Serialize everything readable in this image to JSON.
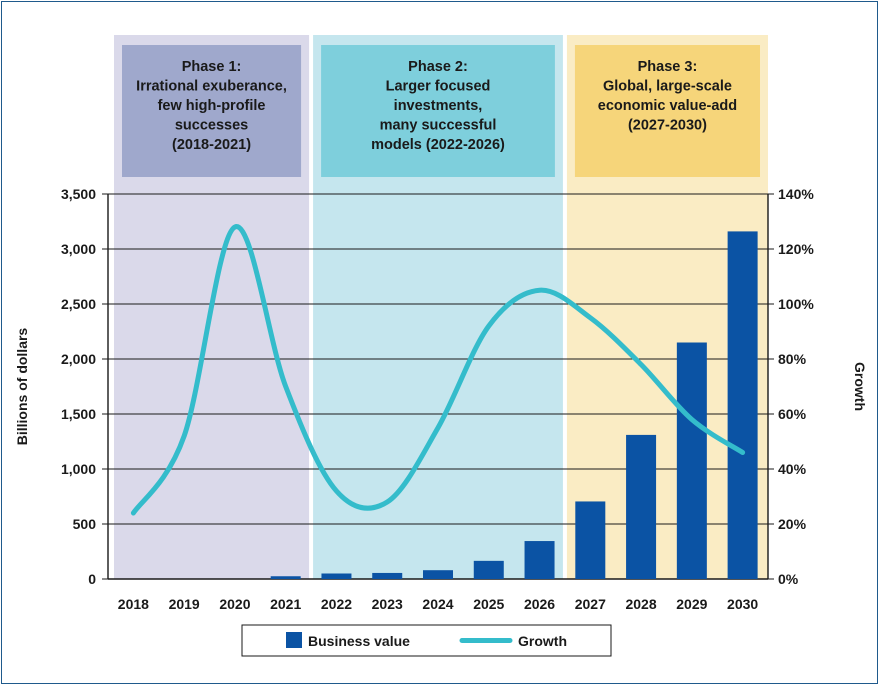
{
  "chart_data": {
    "type": "bar",
    "categories": [
      "2018",
      "2019",
      "2020",
      "2021",
      "2022",
      "2023",
      "2024",
      "2025",
      "2026",
      "2027",
      "2028",
      "2029",
      "2030"
    ],
    "series": [
      {
        "name": "Business value",
        "axis": "left",
        "kind": "bar",
        "values": [
          0,
          0,
          0,
          25,
          50,
          55,
          80,
          165,
          345,
          705,
          1310,
          2150,
          3160
        ]
      },
      {
        "name": "Growth",
        "axis": "right",
        "kind": "line",
        "smooth": true,
        "values": [
          24,
          52,
          128,
          70,
          32,
          28,
          55,
          92,
          105,
          95,
          78,
          58,
          46
        ]
      }
    ],
    "y_left": {
      "label": "Billions of dollars",
      "ylim": [
        0,
        3500
      ],
      "ticks": [
        "0",
        "500",
        "1,000",
        "1,500",
        "2,000",
        "2,500",
        "3,000",
        "3,500"
      ]
    },
    "y_right": {
      "label": "Growth",
      "ylim": [
        0,
        140
      ],
      "ticks": [
        "0%",
        "20%",
        "40%",
        "60%",
        "80%",
        "100%",
        "120%",
        "140%"
      ]
    },
    "phases": [
      {
        "lines": [
          "Phase 1:",
          "Irrational exuberance,",
          "few high-profile",
          "successes",
          "(2018-2021)"
        ],
        "range": [
          "2018",
          "2021"
        ],
        "bg": "#dad9ea",
        "box": "#9fa8cc"
      },
      {
        "lines": [
          "Phase 2:",
          "Larger focused",
          "investments,",
          "many successful",
          "models (2022-2026)"
        ],
        "range": [
          "2022",
          "2026"
        ],
        "bg": "#c5e6ee",
        "box": "#7ecfdc"
      },
      {
        "lines": [
          "Phase 3:",
          "Global, large-scale",
          "economic value-add",
          "(2027-2030)"
        ],
        "range": [
          "2027",
          "2030"
        ],
        "bg": "#faecc4",
        "box": "#f6d57a"
      }
    ],
    "legend": {
      "position": "bottom-center",
      "items": [
        "Business value",
        "Growth"
      ]
    },
    "grid": "horizontal",
    "colors": {
      "bar": "#0b53a4",
      "line": "#34bccb",
      "grid": "#1a1a1a"
    }
  }
}
